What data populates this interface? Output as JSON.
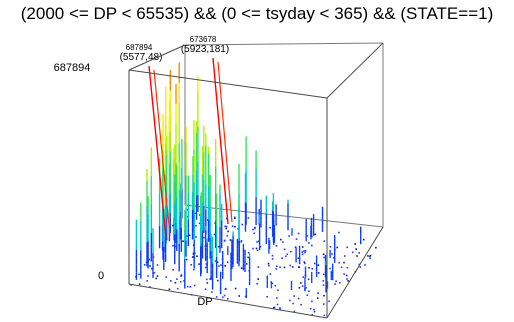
{
  "chart_data": {
    "type": "line",
    "title": "(2000 <= DP < 65535) && (0 <= tsyday < 365) && (STATE==1)",
    "xlabel": "DP",
    "ylabel": "",
    "zlim": [
      0,
      687894
    ],
    "z_tick_labels": [
      "687894",
      "0"
    ],
    "grid": false,
    "legend": "none",
    "colormap": [
      "#0a3cff",
      "#00c8c8",
      "#38e060",
      "#b4f000",
      "#f0f000",
      "#ff8c00",
      "#ff0000"
    ],
    "annotations": [
      {
        "value": "687894",
        "point": "(5577,48)"
      },
      {
        "value": "673678",
        "point": "(5923,181)"
      }
    ]
  }
}
